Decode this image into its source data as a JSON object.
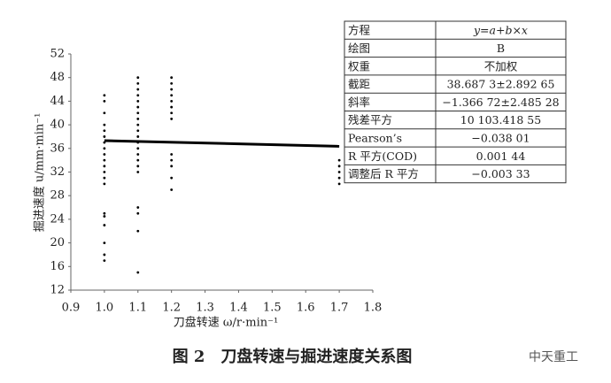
{
  "chart_data": {
    "type": "scatter",
    "title": "图 2　刀盘转速与掘进速度关系图",
    "x_label": "刀盘转速 ω/r·min⁻¹",
    "y_label": "掘进速度 u/mm·min⁻¹",
    "xlim": [
      0.9,
      1.8
    ],
    "xticks": [
      0.9,
      {
        "value": 1,
        "label": "1.0"
      },
      1.1,
      1.2,
      1.3,
      1.4,
      1.5,
      1.6,
      1.7,
      1.8
    ],
    "ylim": [
      12,
      52
    ],
    "yticks": [
      12,
      16,
      20,
      24,
      28,
      32,
      36,
      40,
      44,
      48,
      52
    ],
    "series": [
      {
        "color": "#000000",
        "x": [
          1,
          1,
          1,
          1,
          1,
          1,
          1,
          1,
          1,
          1,
          1,
          1,
          1,
          1,
          1,
          1,
          1,
          1,
          1,
          1,
          1.1,
          1.1,
          1.1,
          1.1,
          1.1,
          1.1,
          1.1,
          1.1,
          1.1,
          1.1,
          1.1,
          1.1,
          1.1,
          1.1,
          1.1,
          1.1,
          1.1,
          1.1,
          1.1,
          1.1,
          1.1,
          1.2,
          1.2,
          1.2,
          1.2,
          1.2,
          1.2,
          1.2,
          1.2,
          1.2,
          1.2,
          1.2,
          1.2,
          1.2,
          1.7,
          1.7,
          1.7,
          1.7,
          1.7
        ],
        "values": [
          45,
          44,
          42,
          40,
          39,
          38,
          37,
          36,
          35,
          34,
          33,
          32,
          31,
          30,
          25,
          24.5,
          23,
          20,
          18,
          17,
          48,
          47,
          46,
          45,
          44,
          43,
          42,
          41,
          40,
          39,
          38,
          37,
          36,
          35,
          34,
          33,
          32,
          26,
          25,
          22,
          15,
          48,
          47,
          46,
          45,
          44,
          43,
          42,
          41,
          35,
          34,
          33,
          31,
          29,
          34,
          33,
          32,
          31,
          30
        ]
      }
    ],
    "fit": {
      "color": "#000000",
      "x": [
        1,
        1.7
      ],
      "values": [
        37.32,
        36.36
      ]
    }
  },
  "table": {
    "rows": [
      [
        "方程",
        "y=a+b×x"
      ],
      [
        "绘图",
        "B"
      ],
      [
        "权重",
        "不加权"
      ],
      [
        "截距",
        "38.687 3±2.892 65"
      ],
      [
        "斜率",
        "−1.366 72±2.485 28"
      ],
      [
        "残差平方",
        "10 103.418 55"
      ],
      [
        "Pearson’s",
        "−0.038 01"
      ],
      [
        "R 平方(COD)",
        "0.001 44"
      ],
      [
        "调整后 R 平方",
        "−0.003 33"
      ]
    ]
  },
  "watermark": "中天重工"
}
